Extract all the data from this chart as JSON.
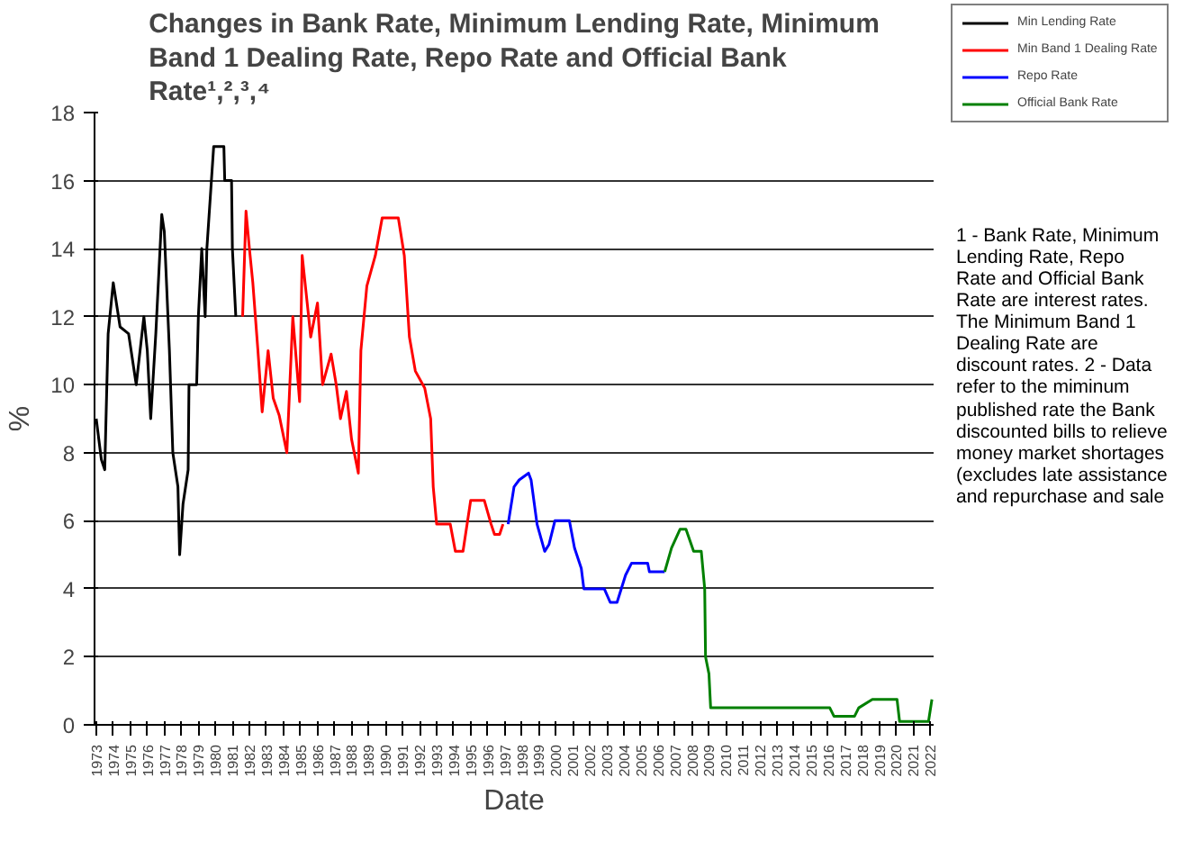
{
  "chart_data": {
    "type": "line",
    "title": "Changes in Bank Rate, Minimum Lending Rate, Minimum Band 1 Dealing Rate, Repo Rate and Official Bank Rate¹,²,³,⁴",
    "xlabel": "Date",
    "ylabel": "%",
    "xlim": [
      1972.9,
      2022.2
    ],
    "xticks": [
      1973,
      1974,
      1975,
      1976,
      1977,
      1978,
      1979,
      1980,
      1981,
      1982,
      1983,
      1984,
      1985,
      1986,
      1987,
      1988,
      1989,
      1990,
      1991,
      1992,
      1993,
      1994,
      1995,
      1996,
      1997,
      1998,
      1999,
      2000,
      2001,
      2002,
      2003,
      2004,
      2005,
      2006,
      2007,
      2008,
      2009,
      2010,
      2011,
      2012,
      2013,
      2014,
      2015,
      2016,
      2017,
      2018,
      2019,
      2020,
      2021,
      2022
    ],
    "ylim": [
      0,
      18
    ],
    "yticks": [
      0,
      2,
      4,
      6,
      8,
      10,
      12,
      14,
      16,
      18
    ],
    "grid": "y",
    "legend": "right",
    "annotations": [
      "1 - Bank Rate, Minimum  Lending Rate, Repo Rate and Official Bank Rate are interest rates.  The Minimum  Band 1 Dealing Rate are discount rates. 2 - Data  refer to the miminum published rate the Bank discounted bills to relieve money market shortages (excludes late assistance and repurchase and sale"
    ],
    "series": [
      {
        "name": "Min Lending Rate",
        "color": "#000000",
        "x": [
          1973.0,
          1973.3,
          1973.5,
          1973.7,
          1974.0,
          1974.4,
          1974.9,
          1975.35,
          1975.8,
          1976.0,
          1976.2,
          1976.5,
          1976.85,
          1977.0,
          1977.3,
          1977.5,
          1977.8,
          1977.9,
          1978.1,
          1978.4,
          1978.45,
          1978.9,
          1979.0,
          1979.2,
          1979.4,
          1979.5,
          1979.9,
          1980.5,
          1980.55,
          1980.95,
          1981.0,
          1981.2
        ],
        "values": [
          9,
          7.8,
          7.5,
          11.5,
          13,
          11.7,
          11.5,
          10,
          12,
          11,
          9,
          11.5,
          15,
          14.5,
          11,
          8,
          7,
          5,
          6.5,
          7.5,
          10,
          10,
          12,
          14,
          12,
          14,
          17,
          17,
          16,
          16,
          14,
          12
        ]
      },
      {
        "name": "Min Band 1 Dealing Rate",
        "color": "#ff0000",
        "x": [
          1981.6,
          1981.8,
          1982.0,
          1982.2,
          1982.5,
          1982.75,
          1983.1,
          1983.4,
          1983.75,
          1984.2,
          1984.55,
          1984.95,
          1985.1,
          1985.5,
          1985.6,
          1986.0,
          1986.3,
          1986.8,
          1987.1,
          1987.35,
          1987.7,
          1988.0,
          1988.4,
          1988.55,
          1988.9,
          1989.4,
          1989.8,
          1990.75,
          1991.1,
          1991.4,
          1991.75,
          1992.3,
          1992.65,
          1992.8,
          1993.0,
          1993.8,
          1994.1,
          1994.55,
          1995.0,
          1995.8,
          1996.2,
          1996.4,
          1996.7,
          1996.9
        ],
        "values": [
          12,
          15.1,
          14,
          13,
          11,
          9.2,
          11,
          9.6,
          9.1,
          8,
          12,
          9.5,
          13.8,
          11.9,
          11.4,
          12.4,
          10,
          10.9,
          10,
          9,
          9.8,
          8.4,
          7.4,
          11,
          12.9,
          13.8,
          14.9,
          14.9,
          13.8,
          11.4,
          10.4,
          9.9,
          9,
          7,
          5.9,
          5.9,
          5.1,
          5.1,
          6.6,
          6.6,
          5.9,
          5.6,
          5.6,
          5.9
        ]
      },
      {
        "name": "Repo Rate",
        "color": "#0000ff",
        "x": [
          1997.2,
          1997.55,
          1997.85,
          1998.4,
          1998.55,
          1998.9,
          1999.35,
          1999.6,
          1999.95,
          2000.8,
          2001.1,
          2001.5,
          2001.65,
          2002.85,
          2003.2,
          2003.6,
          2004.1,
          2004.45,
          2005.4,
          2005.5,
          2006.4
        ],
        "values": [
          5.9,
          7.0,
          7.2,
          7.4,
          7.2,
          5.9,
          5.1,
          5.3,
          6,
          6,
          5.2,
          4.6,
          4.0,
          4.0,
          3.6,
          3.6,
          4.4,
          4.75,
          4.75,
          4.5,
          4.5
        ]
      },
      {
        "name": "Official Bank Rate",
        "color": "#008000",
        "x": [
          2006.4,
          2006.8,
          2007.3,
          2007.65,
          2008.1,
          2008.55,
          2008.75,
          2008.8,
          2009.0,
          2009.1,
          2016.1,
          2016.35,
          2017.55,
          2017.8,
          2018.6,
          2020.05,
          2020.2,
          2021.9,
          2022.1
        ],
        "values": [
          4.5,
          5.2,
          5.75,
          5.75,
          5.1,
          5.1,
          4,
          2,
          1.5,
          0.5,
          0.5,
          0.25,
          0.25,
          0.5,
          0.75,
          0.75,
          0.1,
          0.1,
          0.75
        ]
      }
    ]
  }
}
